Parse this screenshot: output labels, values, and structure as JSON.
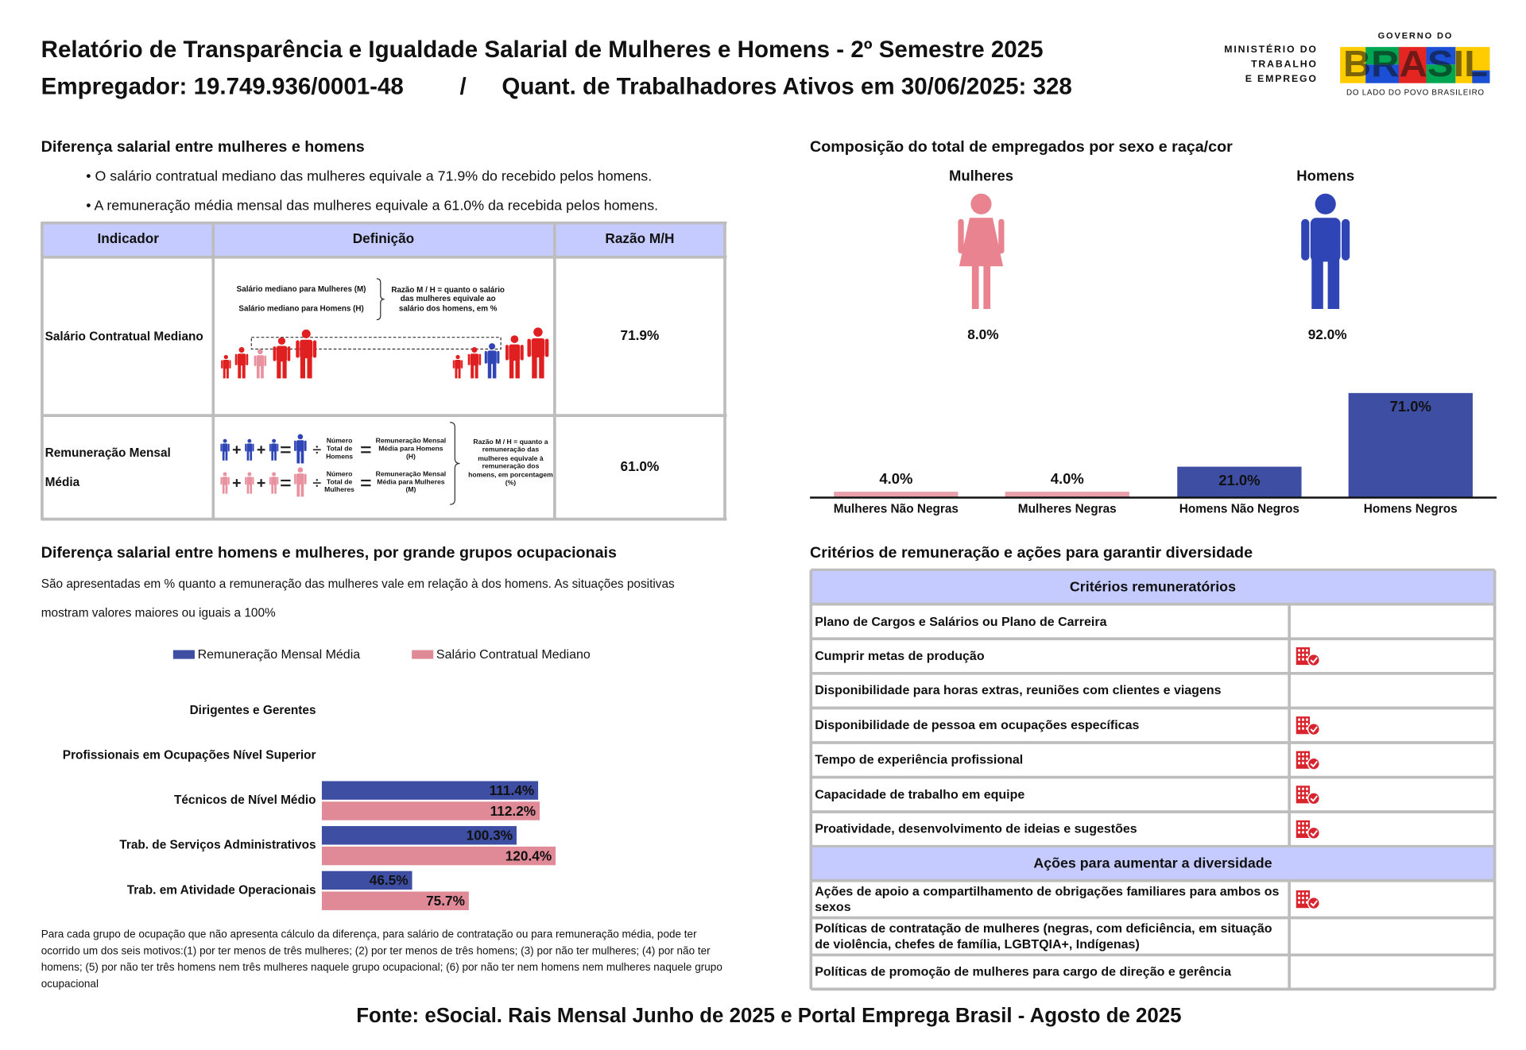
{
  "header": {
    "title": "Relatório de Transparência e Igualdade Salarial de Mulheres e Homens - 2º Semestre 2025",
    "employer": "Empregador: 19.749.936/0001-48",
    "separator": "/",
    "active_workers": "Quant. de Trabalhadores Ativos em 30/06/2025: 328",
    "ministry": [
      "MINISTÉRIO DO",
      "TRABALHO",
      "E EMPREGO"
    ],
    "government": {
      "top": "GOVERNO DO",
      "name": "BRASIL",
      "slogan": "DO LADO DO POVO BRASILEIRO"
    }
  },
  "salary_gap": {
    "title": "Diferença salarial entre mulheres e homens",
    "bullets": [
      "• O salário contratual mediano das mulheres equivale a 71.9% do recebido pelos homens.",
      "• A remuneração média mensal das mulheres equivale a 61.0% da recebida pelos homens."
    ],
    "table": {
      "columns": [
        "Indicador",
        "Definição",
        "Razão M/H"
      ],
      "rows": [
        {
          "indicator": "Salário Contratual Mediano",
          "ratio": "71.9%",
          "definition": [
            "Salário mediano para Mulheres (M)",
            "Salário mediano para Homens (H)",
            "Razão M / H = quanto o salário das mulheres equivale ao salário dos homens, em %"
          ]
        },
        {
          "indicator": "Remuneração Mensal Média",
          "ratio": "61.0%",
          "definition": [
            "Número Total de Homens",
            "Remuneração Mensal Média para Homens (H)",
            "Número Total de Mulheres",
            "Remuneração Mensal Média para Mulheres (M)",
            "Razão M / H = quanto a remuneração das mulheres equivale à remuneração dos homens, em porcentagem (%)"
          ]
        }
      ]
    }
  },
  "composition": {
    "title": "Composição do total de empregados por sexo e raça/cor",
    "by_sex": [
      {
        "label": "Mulheres",
        "share": "8.0%",
        "color": "#e8838f"
      },
      {
        "label": "Homens",
        "share": "92.0%",
        "color": "#2f44b5"
      }
    ],
    "chart_data": {
      "type": "bar",
      "categories": [
        "Mulheres Não Negras",
        "Mulheres Negras",
        "Homens Não Negros",
        "Homens Negros"
      ],
      "values": [
        4.0,
        4.0,
        21.0,
        71.0
      ],
      "value_labels": [
        "4.0%",
        "4.0%",
        "21.0%",
        "71.0%"
      ],
      "colors": [
        "#e8a0aa",
        "#e8a0aa",
        "#3d4ea3",
        "#3d4ea3"
      ]
    }
  },
  "occupation": {
    "title": "Diferença salarial entre homens e mulheres, por grande grupos ocupacionais",
    "subtitle": "São apresentadas em % quanto a remuneração das mulheres vale em relação à dos homens. As situações positivas mostram valores maiores ou iguais a 100%",
    "chart_data": {
      "type": "bar",
      "orientation": "horizontal",
      "legend": "top",
      "categories": [
        "Dirigentes e Gerentes",
        "Profissionais em Ocupações Nível Superior",
        "Técnicos de Nível Médio",
        "Trab. de Serviços Administrativos",
        "Trab. em Atividade Operacionais"
      ],
      "series": [
        {
          "name": "Remuneração Mensal Média",
          "color": "#3d4ea3",
          "values": [
            null,
            null,
            111.4,
            100.3,
            46.5
          ],
          "value_labels": [
            null,
            null,
            "111.4%",
            "100.3%",
            "46.5%"
          ]
        },
        {
          "name": "Salário Contratual Mediano",
          "color": "#e08a98",
          "values": [
            null,
            null,
            112.2,
            120.4,
            75.7
          ],
          "value_labels": [
            null,
            null,
            "112.2%",
            "120.4%",
            "75.7%"
          ]
        }
      ]
    },
    "note": "Para cada grupo de ocupação que não apresenta cálculo da diferença, para salário de contratação ou para remuneração média, pode ter ocorrido um dos seis motivos:(1) por ter menos de três mulheres; (2) por ter menos de três homens; (3) por não ter mulheres; (4) por não ter homens; (5) por não ter três homens nem três mulheres naquele grupo ocupacional; (6) por não ter nem homens nem mulheres naquele grupo ocupacional"
  },
  "criteria": {
    "title": "Critérios de remuneração e ações para garantir diversidade",
    "groups": [
      {
        "heading": "Critérios remuneratórios",
        "rows": [
          {
            "label": "Plano de Cargos e Salários ou Plano de Carreira",
            "checked": false
          },
          {
            "label": "Cumprir metas de produção",
            "checked": true
          },
          {
            "label": "Disponibilidade para horas extras, reuniões com clientes e viagens",
            "checked": false
          },
          {
            "label": "Disponibilidade de pessoa em ocupações específicas",
            "checked": true
          },
          {
            "label": "Tempo de experiência profissional",
            "checked": true
          },
          {
            "label": "Capacidade de trabalho em equipe",
            "checked": true
          },
          {
            "label": "Proatividade, desenvolvimento de ideias e sugestões",
            "checked": true
          }
        ]
      },
      {
        "heading": "Ações para aumentar a diversidade",
        "rows": [
          {
            "label": "Ações de apoio a compartilhamento de obrigações familiares para ambos os sexos",
            "checked": true
          },
          {
            "label": "Políticas de contratação de mulheres (negras, com deficiência, em situação de violência, chefes de família, LGBTQIA+, Indígenas)",
            "checked": false
          },
          {
            "label": "Políticas de promoção de mulheres para cargo de direção e gerência",
            "checked": false
          }
        ]
      }
    ]
  },
  "footer": {
    "source": "Fonte: eSocial. Rais Mensal Junho de 2025 e Portal Emprega Brasil - Agosto de 2025"
  }
}
